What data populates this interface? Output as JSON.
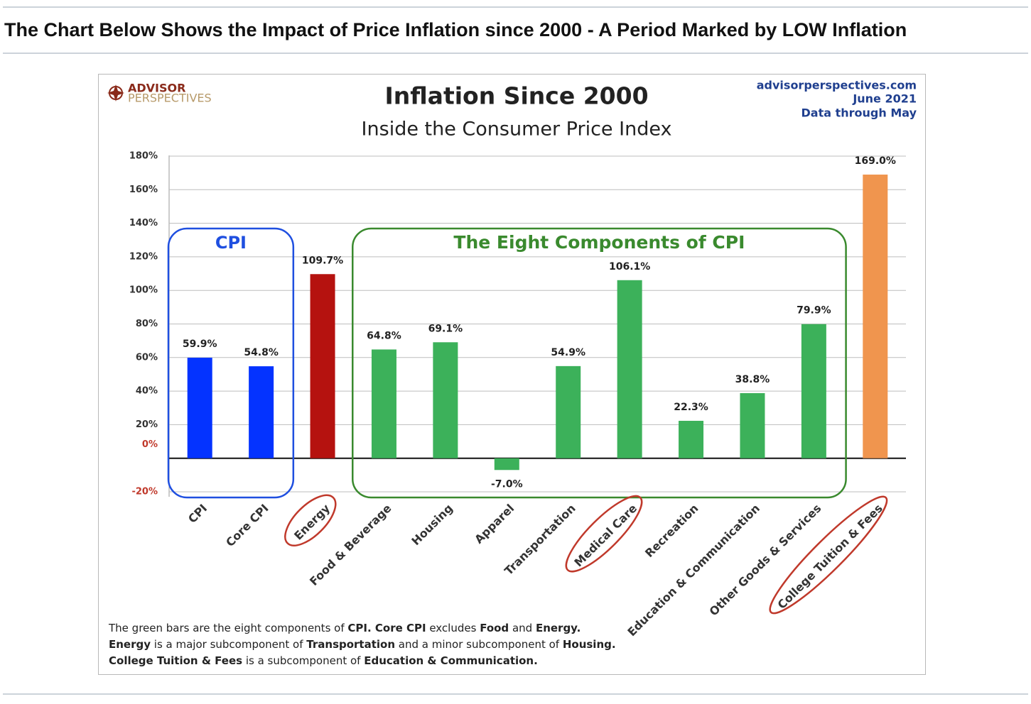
{
  "heading": "The Chart Below Shows the Impact of Price Inflation since 2000 - A Period Marked by LOW Inflation",
  "chart_data": {
    "type": "bar",
    "title": "Inflation Since 2000",
    "subtitle": "Inside the Consumer Price Index",
    "logo": [
      "ADVISOR",
      "PERSPECTIVES"
    ],
    "source": [
      "advisorperspectives.com",
      "June 2021",
      "Data through May"
    ],
    "categories": [
      "CPI",
      "Core CPI",
      "Energy",
      "Food & Beverage",
      "Housing",
      "Apparel",
      "Transportation",
      "Medical Care",
      "Recreation",
      "Education & Communication",
      "Other Goods & Services",
      "College Tuition & Fees"
    ],
    "values": [
      59.9,
      54.8,
      109.7,
      64.8,
      69.1,
      -7.0,
      54.9,
      106.1,
      22.3,
      38.8,
      79.9,
      169.0
    ],
    "value_labels": [
      "59.9%",
      "54.8%",
      "109.7%",
      "64.8%",
      "69.1%",
      "-7.0%",
      "54.9%",
      "106.1%",
      "22.3%",
      "38.8%",
      "79.9%",
      "169.0%"
    ],
    "colors": [
      "#0433ff",
      "#0433ff",
      "#b5120f",
      "#3cb15a",
      "#3cb15a",
      "#3cb15a",
      "#3cb15a",
      "#3cb15a",
      "#3cb15a",
      "#3cb15a",
      "#3cb15a",
      "#f0954e"
    ],
    "ylim": [
      -20,
      180
    ],
    "yticks": [
      {
        "value": -20,
        "label": "-20%"
      },
      {
        "value": 0,
        "label": "0%"
      },
      {
        "value": 20,
        "label": "20%"
      },
      {
        "value": 40,
        "label": "40%"
      },
      {
        "value": 60,
        "label": "60%"
      },
      {
        "value": 80,
        "label": "80%"
      },
      {
        "value": 100,
        "label": "100%"
      },
      {
        "value": 120,
        "label": "120%"
      },
      {
        "value": 140,
        "label": "140%"
      },
      {
        "value": 160,
        "label": "160%"
      },
      {
        "value": 180,
        "label": "180%"
      }
    ],
    "grid": true,
    "groups": [
      {
        "label": "CPI",
        "from": 0,
        "to": 1,
        "color": "#1f4fe0"
      },
      {
        "label": "The Eight Components of CPI",
        "from": 3,
        "to": 10,
        "color": "#3a8a2e"
      }
    ],
    "circled": [
      2,
      7,
      11
    ],
    "footnote": [
      [
        {
          "text": "The green bars are the eight components of ",
          "bold": false
        },
        {
          "text": "CPI. Core CPI",
          "bold": true
        },
        {
          "text": " excludes ",
          "bold": false
        },
        {
          "text": "Food",
          "bold": true
        },
        {
          "text": " and ",
          "bold": false
        },
        {
          "text": "Energy.",
          "bold": true
        }
      ],
      [
        {
          "text": "Energy",
          "bold": true
        },
        {
          "text": " is a  major subcomponent of ",
          "bold": false
        },
        {
          "text": "Transportation",
          "bold": true
        },
        {
          "text": " and a minor subcomponent of ",
          "bold": false
        },
        {
          "text": "Housing.",
          "bold": true
        }
      ],
      [
        {
          "text": "College Tuition & Fees",
          "bold": true
        },
        {
          "text": " is a subcomponent of ",
          "bold": false
        },
        {
          "text": "Education & Communication.",
          "bold": true
        }
      ]
    ]
  }
}
